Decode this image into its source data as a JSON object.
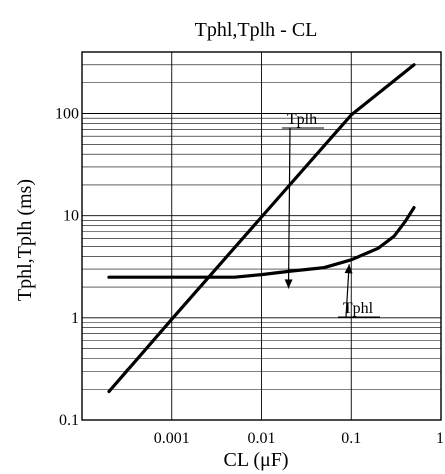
{
  "chart_data": {
    "type": "line",
    "title": "Tphl,Tplh - CL",
    "xlabel": "CL (μF)",
    "ylabel": "Tphl,Tplh (ms)",
    "x_scale": "log",
    "y_scale": "log",
    "xlim": [
      0.0001,
      1
    ],
    "ylim": [
      0.1,
      400
    ],
    "x_ticks": [
      {
        "value": 0.001,
        "label": "0.001"
      },
      {
        "value": 0.01,
        "label": "0.01"
      },
      {
        "value": 0.1,
        "label": "0.1"
      },
      {
        "value": 1,
        "label": "1"
      }
    ],
    "y_ticks": [
      {
        "value": 0.1,
        "label": "0.1"
      },
      {
        "value": 1,
        "label": "1"
      },
      {
        "value": 10,
        "label": "10"
      },
      {
        "value": 100,
        "label": "100"
      }
    ],
    "grid": true,
    "series": [
      {
        "name": "Tplh",
        "x": [
          0.0002,
          0.001,
          0.01,
          0.1,
          0.5
        ],
        "y": [
          0.19,
          0.97,
          9.7,
          97,
          300
        ]
      },
      {
        "name": "Tphl",
        "x": [
          0.0002,
          0.001,
          0.003,
          0.005,
          0.01,
          0.02,
          0.05,
          0.1,
          0.2,
          0.3,
          0.4,
          0.5
        ],
        "y": [
          2.5,
          2.5,
          2.5,
          2.5,
          2.65,
          2.85,
          3.1,
          3.7,
          4.8,
          6.3,
          8.8,
          12
        ]
      }
    ],
    "annotations": [
      {
        "text": "Tplh",
        "series": "Tplh"
      },
      {
        "text": "Tphl",
        "series": "Tphl"
      }
    ]
  }
}
